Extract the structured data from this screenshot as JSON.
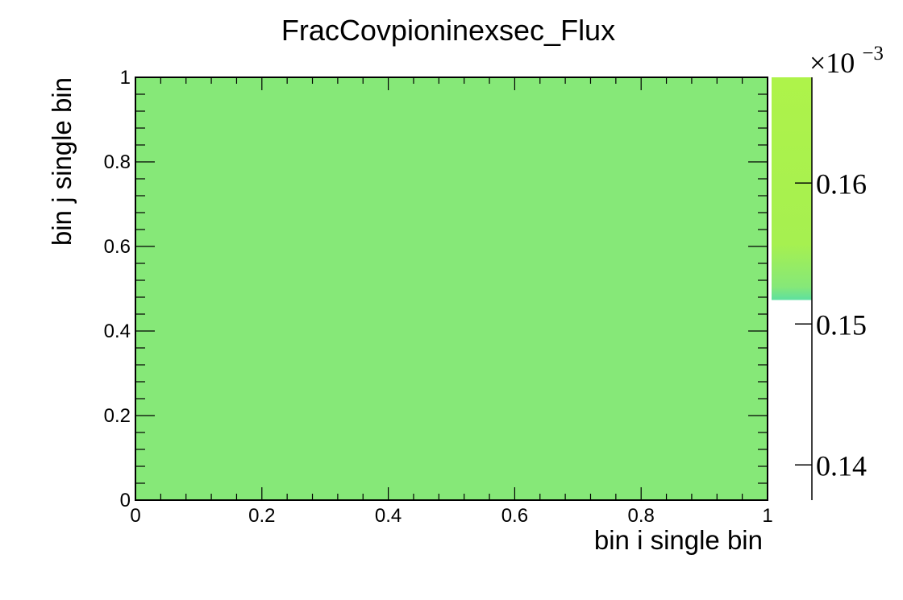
{
  "chart_data": {
    "type": "heatmap",
    "title": "FracCovpioninexsec_Flux",
    "xlabel": "bin i single bin",
    "ylabel": "bin j single bin",
    "xlim": [
      0,
      1
    ],
    "ylim": [
      0,
      1
    ],
    "x_ticks": [
      "0",
      "0.2",
      "0.4",
      "0.6",
      "0.8",
      "1"
    ],
    "y_ticks": [
      "0",
      "0.2",
      "0.4",
      "0.6",
      "0.8",
      "1"
    ],
    "cells": [
      {
        "x": [
          0,
          1
        ],
        "y": [
          0,
          1
        ],
        "value": 0.000152,
        "color": "#86e878"
      }
    ],
    "colorbar": {
      "multiplier_base": "×10",
      "multiplier_exponent": "−3",
      "ticks": [
        "0.14",
        "0.15",
        "0.16"
      ],
      "tick_values": [
        0.14,
        0.15,
        0.16
      ],
      "range": [
        0.1375,
        0.1675
      ],
      "filled_range": [
        0.1517,
        0.1675
      ],
      "gradient": [
        "#5de0a0",
        "#86e878",
        "#a6f050",
        "#aef34a"
      ]
    }
  }
}
